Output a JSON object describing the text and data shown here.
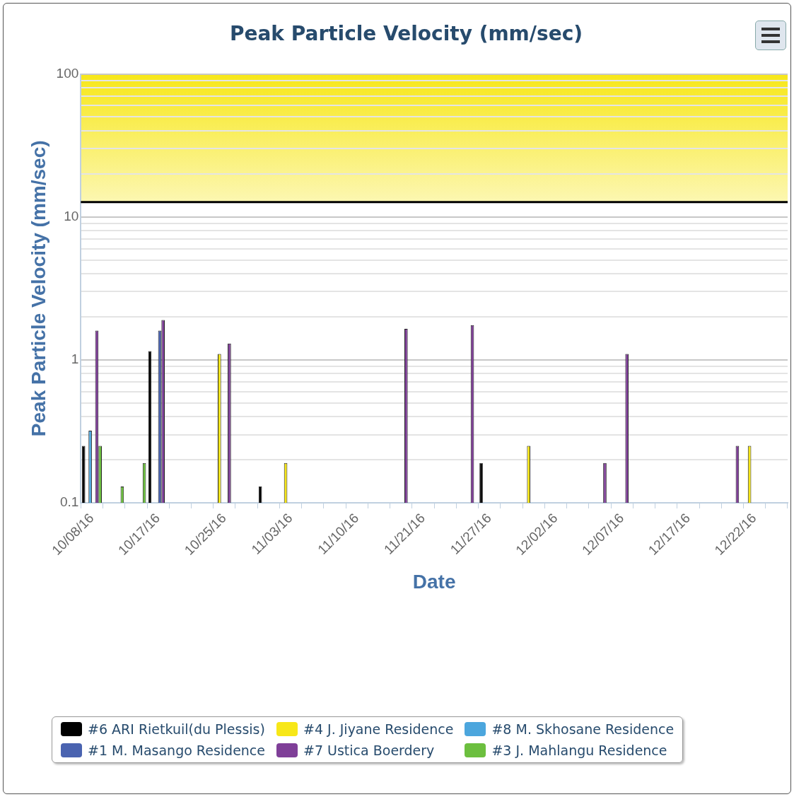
{
  "chart_data": {
    "type": "bar",
    "title": "Peak Particle Velocity (mm/sec)",
    "xlabel": "Date",
    "ylabel": "Peak Particle Velocity (mm/sec)",
    "categories": [
      "10/08/16",
      null,
      null,
      "10/17/16",
      null,
      null,
      "10/25/16",
      null,
      null,
      "11/03/16",
      null,
      null,
      "11/10/16",
      null,
      null,
      "11/21/16",
      null,
      null,
      "11/27/16",
      null,
      null,
      "12/02/16",
      null,
      null,
      "12/07/16",
      null,
      null,
      "12/17/16",
      null,
      null,
      "12/22/16",
      null
    ],
    "series": [
      {
        "name": "#6 ARI Rietkuil(du Plessis)",
        "color": "#000000",
        "values": [
          0.25,
          null,
          null,
          1.15,
          null,
          null,
          null,
          null,
          0.13,
          null,
          null,
          null,
          null,
          null,
          null,
          null,
          null,
          null,
          0.19,
          null,
          null,
          null,
          null,
          null,
          null,
          null,
          null,
          null,
          null,
          null,
          null,
          null
        ]
      },
      {
        "name": "#4 J. Jiyane Residence",
        "color": "#f7e718",
        "values": [
          null,
          null,
          null,
          null,
          null,
          null,
          1.1,
          null,
          null,
          0.19,
          null,
          null,
          null,
          null,
          null,
          null,
          null,
          null,
          null,
          null,
          0.25,
          null,
          null,
          null,
          null,
          null,
          null,
          null,
          null,
          null,
          0.25,
          null
        ]
      },
      {
        "name": "#8 M. Skhosane Residence",
        "color": "#4ca6dd",
        "values": [
          0.32,
          null,
          null,
          null,
          null,
          null,
          null,
          null,
          null,
          null,
          null,
          null,
          null,
          null,
          null,
          null,
          null,
          null,
          null,
          null,
          null,
          null,
          null,
          null,
          null,
          null,
          null,
          null,
          null,
          null,
          null,
          null
        ]
      },
      {
        "name": "#1 M. Masango Residence",
        "color": "#4a63b0",
        "values": [
          null,
          null,
          null,
          1.6,
          null,
          null,
          null,
          null,
          null,
          null,
          null,
          null,
          null,
          null,
          null,
          null,
          null,
          null,
          null,
          null,
          null,
          null,
          null,
          null,
          null,
          null,
          null,
          null,
          null,
          null,
          null,
          null
        ]
      },
      {
        "name": "#7 Ustica Boerdery",
        "color": "#7f3f98",
        "values": [
          1.6,
          null,
          null,
          1.9,
          null,
          null,
          1.3,
          null,
          null,
          null,
          null,
          null,
          null,
          null,
          1.65,
          null,
          null,
          1.75,
          null,
          null,
          null,
          null,
          null,
          0.19,
          1.1,
          null,
          null,
          null,
          null,
          0.25,
          null,
          null
        ]
      },
      {
        "name": "#3 J. Mahlangu Residence",
        "color": "#6cbf3f",
        "values": [
          0.25,
          0.13,
          0.19,
          null,
          null,
          null,
          null,
          null,
          null,
          null,
          null,
          null,
          null,
          null,
          null,
          null,
          null,
          null,
          null,
          null,
          null,
          null,
          null,
          null,
          null,
          null,
          null,
          null,
          null,
          null,
          null,
          null
        ]
      }
    ],
    "log": "y",
    "ylim": [
      0.1,
      100
    ],
    "yticks": [
      {
        "value": 0.1,
        "label": "0.1"
      },
      {
        "value": 0.2,
        "label": null
      },
      {
        "value": 0.3,
        "label": null
      },
      {
        "value": 0.4,
        "label": null
      },
      {
        "value": 0.5,
        "label": null
      },
      {
        "value": 0.6,
        "label": null
      },
      {
        "value": 0.7,
        "label": null
      },
      {
        "value": 0.8,
        "label": null
      },
      {
        "value": 0.9,
        "label": null
      },
      1,
      {
        "value": 2,
        "label": null
      },
      {
        "value": 3,
        "label": null
      },
      {
        "value": 4,
        "label": null
      },
      {
        "value": 5,
        "label": null
      },
      {
        "value": 6,
        "label": null
      },
      {
        "value": 7,
        "label": null
      },
      {
        "value": 8,
        "label": null
      },
      {
        "value": 9,
        "label": null
      },
      10,
      {
        "value": 20,
        "label": null
      },
      {
        "value": 30,
        "label": null
      },
      {
        "value": 40,
        "label": null
      },
      {
        "value": 50,
        "label": null
      },
      {
        "value": 60,
        "label": null
      },
      {
        "value": 70,
        "label": null
      },
      {
        "value": 80,
        "label": null
      },
      {
        "value": 90,
        "label": null
      },
      100
    ],
    "ref_lines": [
      {
        "axis": "y",
        "value": 12.7,
        "color": "#000000"
      }
    ],
    "bands": [
      {
        "axis": "y",
        "from": 12.7,
        "to": 100,
        "color": "#f7e718"
      }
    ],
    "grid": "y",
    "legend": "bottom"
  }
}
